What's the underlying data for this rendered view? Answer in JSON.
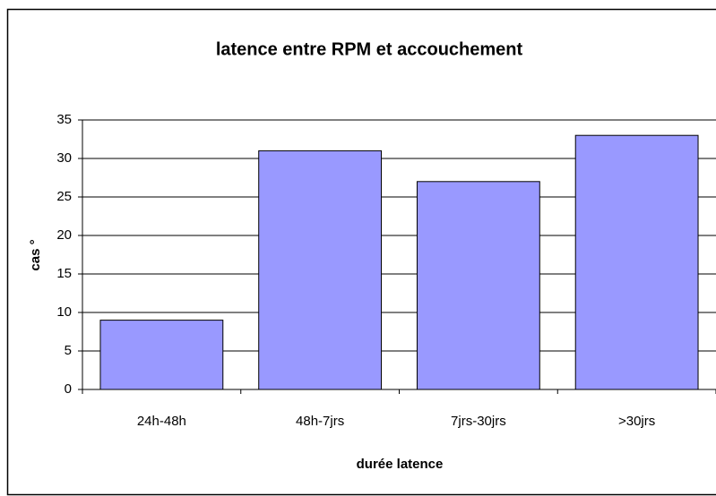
{
  "chart_data": {
    "type": "bar",
    "title": "latence entre RPM et accouchement",
    "x_label": "durée latence",
    "y_label": "cas °",
    "categories": [
      "24h-48h",
      "48h-7jrs",
      "7jrs-30jrs",
      ">30jrs"
    ],
    "values": [
      9,
      31,
      27,
      33
    ],
    "color": "#9999ff",
    "ylim": [
      0,
      35
    ],
    "yticks": [
      0,
      5,
      10,
      15,
      20,
      25,
      30,
      35
    ],
    "grid": true
  }
}
